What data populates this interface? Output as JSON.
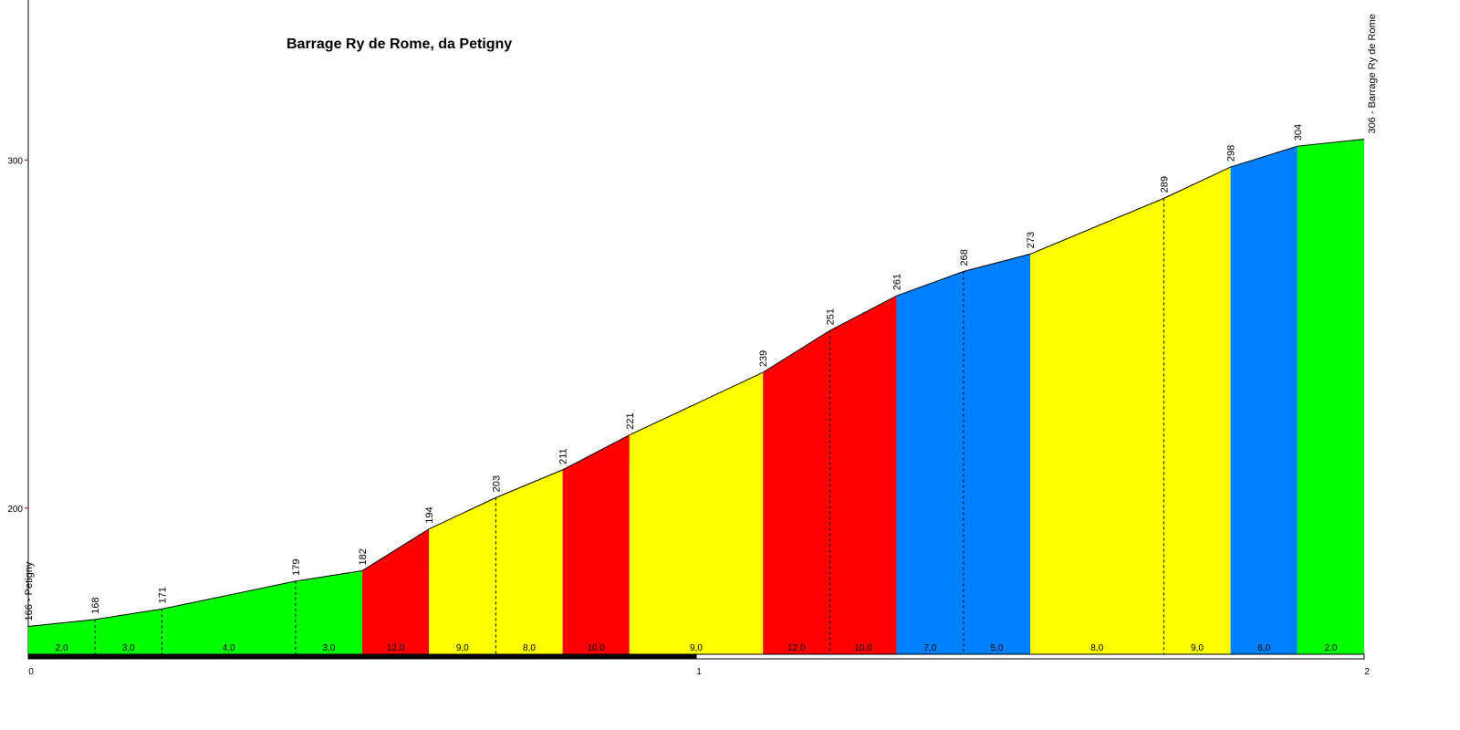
{
  "chart_data": {
    "type": "area",
    "title": "Barrage Ry de Rome, da Petigny",
    "x": [
      0,
      0.1,
      0.2,
      0.4,
      0.5,
      0.6,
      0.7,
      0.8,
      0.9,
      1.1,
      1.2,
      1.3,
      1.4,
      1.5,
      1.7,
      1.8,
      1.9,
      2.0
    ],
    "values": [
      166,
      168,
      171,
      179,
      182,
      194,
      203,
      211,
      221,
      239,
      251,
      261,
      268,
      273,
      289,
      298,
      304,
      306
    ],
    "value_labels": [
      "166 - Petigny",
      "168",
      "171",
      "179",
      "182",
      "194",
      "203",
      "211",
      "221",
      "239",
      "251",
      "261",
      "268",
      "273",
      "289",
      "298",
      "304",
      "306 - Barrage Ry de Rome"
    ],
    "segments": {
      "values": [
        2.0,
        3.0,
        4.0,
        3.0,
        12.0,
        9.0,
        8.0,
        10.0,
        9.0,
        12.0,
        10.0,
        7.0,
        5.0,
        8.0,
        9.0,
        6.0,
        2.0
      ],
      "value_labels": [
        "2,0",
        "3,0",
        "4,0",
        "3,0",
        "12,0",
        "9,0",
        "8,0",
        "10,0",
        "9,0",
        "12,0",
        "10,0",
        "7,0",
        "5,0",
        "8,0",
        "9,0",
        "6,0",
        "2,0"
      ],
      "colors": [
        "#00ff00",
        "#00ff00",
        "#00ff00",
        "#00ff00",
        "#ff0000",
        "#ffff00",
        "#ffff00",
        "#ff0000",
        "#ffff00",
        "#ff0000",
        "#ff0000",
        "#0080ff",
        "#0080ff",
        "#ffff00",
        "#ffff00",
        "#0080ff",
        "#00ff00"
      ]
    },
    "xlim": [
      0,
      2
    ],
    "ylim": [
      158,
      346
    ],
    "xticks": [
      0,
      1,
      2
    ],
    "yticks": [
      200,
      300
    ]
  }
}
